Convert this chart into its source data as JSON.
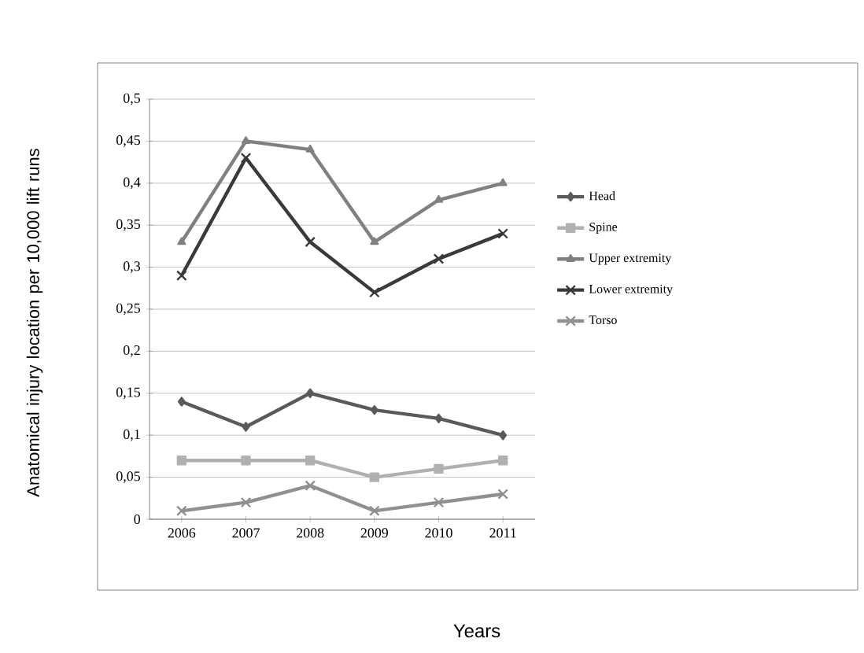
{
  "chart_data": {
    "type": "line",
    "xlabel": "Years",
    "ylabel": "Anatomical injury location per 10,000 lift runs",
    "categories": [
      "2006",
      "2007",
      "2008",
      "2009",
      "2010",
      "2011"
    ],
    "series": [
      {
        "name": "Head",
        "color": "#5a5a5a",
        "marker": "diamond",
        "values": [
          0.14,
          0.11,
          0.15,
          0.13,
          0.12,
          0.1
        ]
      },
      {
        "name": "Spine",
        "color": "#b0b0b0",
        "marker": "square",
        "values": [
          0.07,
          0.07,
          0.07,
          0.05,
          0.06,
          0.07
        ]
      },
      {
        "name": "Upper extremity",
        "color": "#808080",
        "marker": "triangle",
        "values": [
          0.33,
          0.45,
          0.44,
          0.33,
          0.38,
          0.4
        ]
      },
      {
        "name": "Lower extremity",
        "color": "#3a3a3a",
        "marker": "cross",
        "values": [
          0.29,
          0.43,
          0.33,
          0.27,
          0.31,
          0.34
        ]
      },
      {
        "name": "Torso",
        "color": "#909090",
        "marker": "cross",
        "values": [
          0.01,
          0.02,
          0.04,
          0.01,
          0.02,
          0.03
        ]
      }
    ],
    "ylim": [
      0,
      0.5
    ],
    "yticks": [
      0,
      {
        "value": 0.05,
        "label": "0,05"
      },
      {
        "value": 0.1,
        "label": "0,1"
      },
      {
        "value": 0.15,
        "label": "0,15"
      },
      {
        "value": 0.2,
        "label": "0,2"
      },
      {
        "value": 0.25,
        "label": "0,25"
      },
      {
        "value": 0.3,
        "label": "0,3"
      },
      {
        "value": 0.35,
        "label": "0,35"
      },
      {
        "value": 0.4,
        "label": "0,4"
      },
      {
        "value": 0.45,
        "label": "0,45"
      },
      {
        "value": 0.5,
        "label": "0,5"
      }
    ],
    "grid": "y",
    "legend": "right",
    "line_style": "solid"
  }
}
